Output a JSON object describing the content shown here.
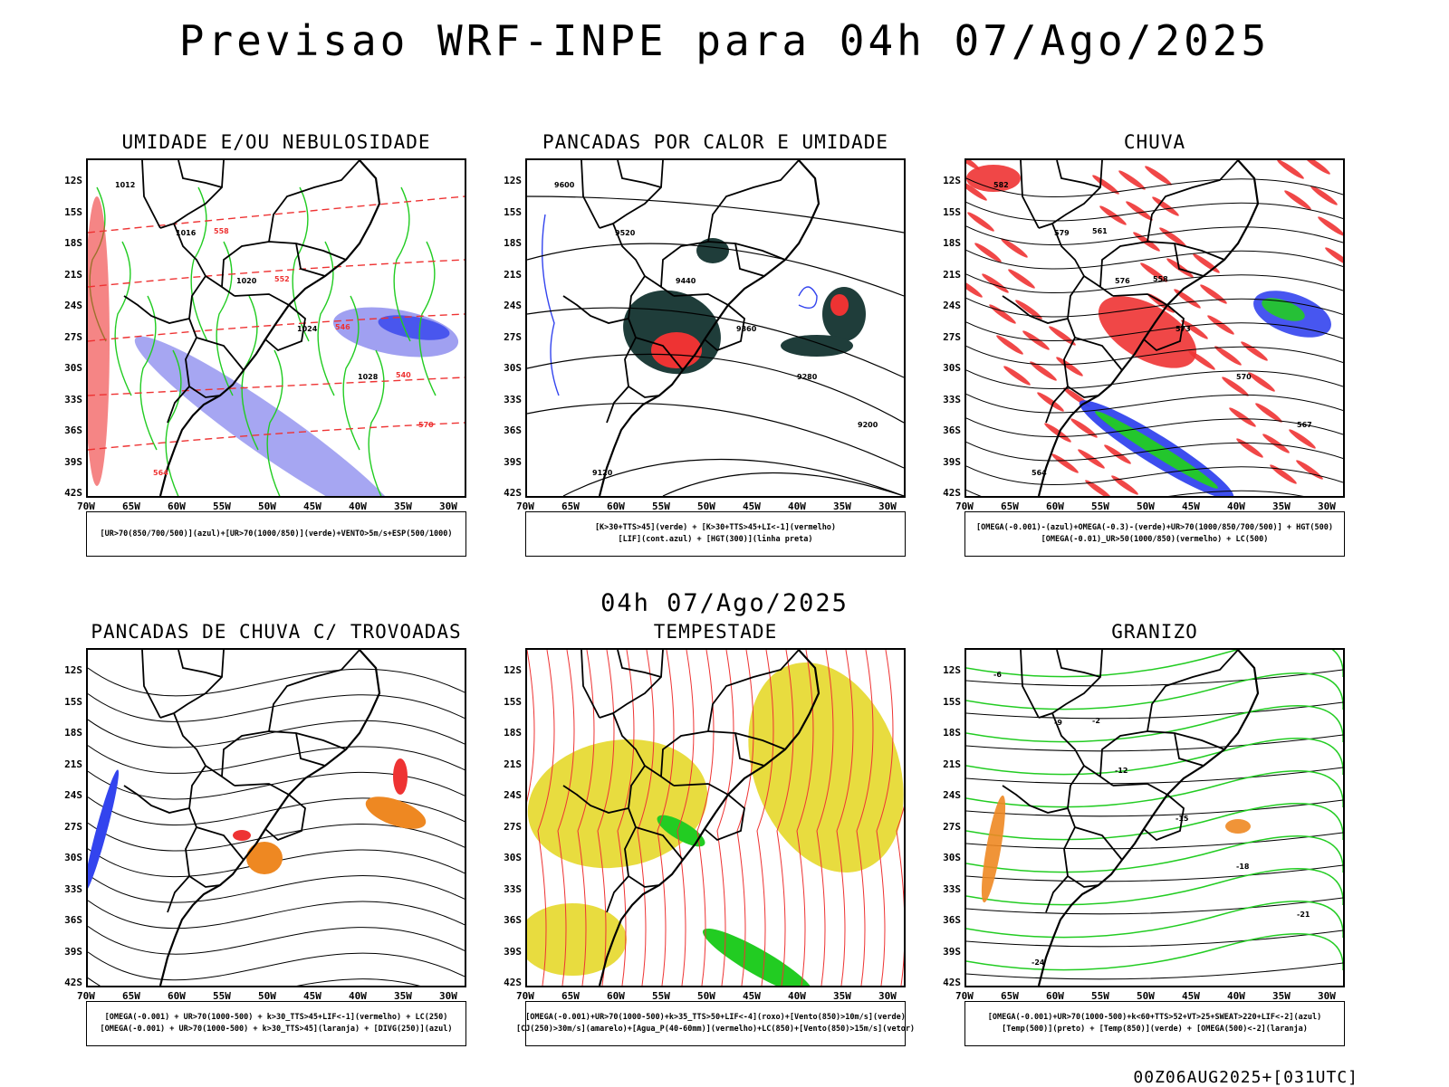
{
  "header": {
    "title": "Previsao WRF-INPE  para 04h 07/Ago/2025",
    "subtitle": "04h 07/Ago/2025",
    "run_stamp": "00Z06AUG2025+[031UTC]"
  },
  "axes": {
    "lat_labels": [
      "12S",
      "15S",
      "18S",
      "21S",
      "24S",
      "27S",
      "30S",
      "33S",
      "36S",
      "39S",
      "42S"
    ],
    "lon_labels": [
      "70W",
      "65W",
      "60W",
      "55W",
      "50W",
      "45W",
      "40W",
      "35W",
      "30W"
    ]
  },
  "panels": [
    {
      "id": "umidade",
      "title": "UMIDADE E/OU NEBULOSIDADE",
      "legend": [
        "[UR>70(850/700/500)](azul)+[UR>70(1000/850)](verde)+VENTO>5m/s+ESP(500/1000)"
      ],
      "contour_labels": [
        "1012",
        "1016",
        "1020",
        "1024",
        "1028",
        "570",
        "564",
        "558",
        "552",
        "546",
        "540"
      ]
    },
    {
      "id": "pancadas-calor",
      "title": "PANCADAS POR CALOR E UMIDADE",
      "legend": [
        "[K>30+TTS>45](verde) + [K>30+TTS>45+LI<-1](vermelho)",
        "[LIF](cont.azul) + [HGT(300)](linha preta)"
      ],
      "contour_labels": [
        "9600",
        "9520",
        "9440",
        "9360",
        "9280",
        "9200",
        "9120"
      ]
    },
    {
      "id": "chuva",
      "title": "CHUVA",
      "legend": [
        "[OMEGA(-0.001)-(azul)+OMEGA(-0.3)-(verde)+UR>70(1000/850/700/500)] + HGT(500)",
        "[OMEGA(-0.01)_UR>50(1000/850)(vermelho) + LC(500)"
      ],
      "contour_labels": [
        "582",
        "579",
        "576",
        "573",
        "570",
        "567",
        "564",
        "561",
        "558"
      ]
    },
    {
      "id": "trovoadas",
      "title": "PANCADAS DE CHUVA C/ TROVOADAS",
      "legend": [
        "[OMEGA(-0.001) + UR>70(1000-500) + k>30_TTS>45+LIF<-1](vermelho) + LC(250)",
        "[OMEGA(-0.001) + UR>70(1000-500) + k>30_TTS>45](laranja) + [DIVG(250)](azul)"
      ],
      "contour_labels": []
    },
    {
      "id": "tempestade",
      "title": "TEMPESTADE",
      "legend": [
        "[OMEGA(-0.001)+UR>70(1000-500)+k>35_TTS>50+LIF<-4](roxo)+[Vento(850)>10m/s](verde)",
        "[CJ(250)>30m/s](amarelo)+[Agua_P(40-60mm)](vermelho)+LC(850)+[Vento(850)>15m/s](vetor)"
      ],
      "contour_labels": []
    },
    {
      "id": "granizo",
      "title": "GRANIZO",
      "legend": [
        "[OMEGA(-0.001)+UR>70(1000-500)+k<60+TTS>52+VT>25+SWEAT>220+LIF<-2](azul)",
        "[Temp(500)](preto) + [Temp(850)](verde) + [OMEGA(500)<-2](laranja)"
      ],
      "contour_labels": [
        "-6",
        "-9",
        "-12",
        "-15",
        "-18",
        "-21",
        "-24",
        "-2"
      ]
    }
  ],
  "colors": {
    "green": "#22cc22",
    "blue": "#3344ee",
    "lightblue": "#8888ee",
    "red": "#ee3333",
    "darkgreen": "#1f3d3a",
    "orange": "#ee8822",
    "yellow": "#e6d82a"
  }
}
